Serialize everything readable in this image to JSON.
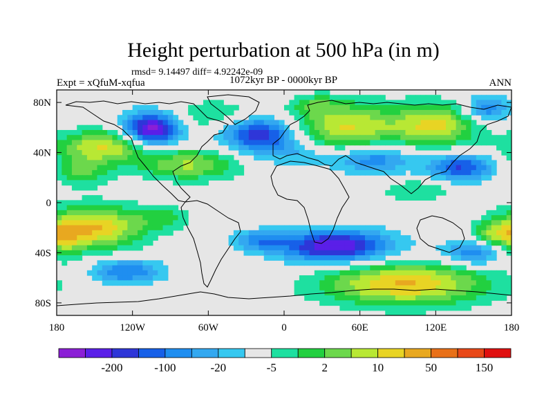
{
  "chart_data": {
    "type": "contour-map",
    "title": "Height perturbation at 500 hPa (in m)",
    "stats": "rmsd= 9.14497 diff= 4.92242e-09",
    "left_label": "Expt = xQfuM-xqfua",
    "center_label": "1072kyr BP - 0000kyr BP",
    "right_label": "ANN",
    "lon_range": [
      -180,
      180
    ],
    "lat_range": [
      -90,
      90
    ],
    "x_ticks": [
      {
        "value": -180,
        "label": "180"
      },
      {
        "value": -120,
        "label": "120W"
      },
      {
        "value": -60,
        "label": "60W"
      },
      {
        "value": 0,
        "label": "0"
      },
      {
        "value": 60,
        "label": "60E"
      },
      {
        "value": 120,
        "label": "120E"
      },
      {
        "value": 180,
        "label": "180"
      }
    ],
    "y_ticks": [
      {
        "value": 80,
        "label": "80N"
      },
      {
        "value": 40,
        "label": "40N"
      },
      {
        "value": 0,
        "label": "0"
      },
      {
        "value": -40,
        "label": "40S"
      },
      {
        "value": -80,
        "label": "80S"
      }
    ],
    "colorbar": {
      "colors": [
        "#8b1fd6",
        "#5a1fe8",
        "#2e36d8",
        "#1760e8",
        "#1f8ef0",
        "#33a8f0",
        "#36c8f0",
        "#e6e6e6",
        "#1ee0a0",
        "#22d040",
        "#6cd84c",
        "#b8e834",
        "#e8d424",
        "#e8a820",
        "#e87018",
        "#e84818",
        "#e01010"
      ],
      "labels": [
        {
          "after_index": 1,
          "label": "-200"
        },
        {
          "after_index": 3,
          "label": "-100"
        },
        {
          "after_index": 5,
          "label": "-20"
        },
        {
          "after_index": 7,
          "label": "-5"
        },
        {
          "after_index": 9,
          "label": "2"
        },
        {
          "after_index": 11,
          "label": "10"
        },
        {
          "after_index": 13,
          "label": "50"
        },
        {
          "after_index": 15,
          "label": "150"
        }
      ]
    },
    "anomalies": [
      {
        "lon": -140,
        "lat": 45,
        "lon_radius": 40,
        "lat_radius": 13,
        "peak": 5
      },
      {
        "lon": -160,
        "lat": 25,
        "lon_radius": 22,
        "lat_radius": 12,
        "peak": 3
      },
      {
        "lon": -105,
        "lat": 58,
        "lon_radius": 22,
        "lat_radius": 14,
        "peak": -8
      },
      {
        "lon": -75,
        "lat": 30,
        "lon_radius": 38,
        "lat_radius": 12,
        "peak": 4
      },
      {
        "lon": -55,
        "lat": 70,
        "lon_radius": 40,
        "lat_radius": 12,
        "peak": 2
      },
      {
        "lon": -20,
        "lat": 55,
        "lon_radius": 28,
        "lat_radius": 14,
        "peak": -6
      },
      {
        "lon": 10,
        "lat": 40,
        "lon_radius": 28,
        "lat_radius": 12,
        "peak": -2
      },
      {
        "lon": 50,
        "lat": 60,
        "lon_radius": 42,
        "lat_radius": 20,
        "peak": 5
      },
      {
        "lon": 120,
        "lat": 62,
        "lon_radius": 32,
        "lat_radius": 17,
        "peak": 5
      },
      {
        "lon": 70,
        "lat": 35,
        "lon_radius": 32,
        "lat_radius": 12,
        "peak": -4
      },
      {
        "lon": 140,
        "lat": 28,
        "lon_radius": 26,
        "lat_radius": 11,
        "peak": -5
      },
      {
        "lon": 25,
        "lat": 78,
        "lon_radius": 18,
        "lat_radius": 8,
        "peak": 2
      },
      {
        "lon": 160,
        "lat": 75,
        "lon_radius": 18,
        "lat_radius": 10,
        "peak": -4
      },
      {
        "lon": 105,
        "lat": 10,
        "lon_radius": 28,
        "lat_radius": 9,
        "peak": 2
      },
      {
        "lon": -150,
        "lat": -20,
        "lon_radius": 38,
        "lat_radius": 17,
        "peak": 6
      },
      {
        "lon": -175,
        "lat": -30,
        "lon_radius": 15,
        "lat_radius": 15,
        "peak": 3
      },
      {
        "lon": -125,
        "lat": -55,
        "lon_radius": 28,
        "lat_radius": 10,
        "peak": -4
      },
      {
        "lon": -95,
        "lat": -12,
        "lon_radius": 22,
        "lat_radius": 10,
        "peak": 2
      },
      {
        "lon": 40,
        "lat": -35,
        "lon_radius": 45,
        "lat_radius": 13,
        "peak": -7
      },
      {
        "lon": -20,
        "lat": -30,
        "lon_radius": 20,
        "lat_radius": 8,
        "peak": -3
      },
      {
        "lon": 95,
        "lat": -65,
        "lon_radius": 65,
        "lat_radius": 17,
        "peak": 6
      },
      {
        "lon": 150,
        "lat": -40,
        "lon_radius": 25,
        "lat_radius": 10,
        "peak": -4
      },
      {
        "lon": 165,
        "lat": -25,
        "lon_radius": 15,
        "lat_radius": 10,
        "peak": 3
      }
    ]
  }
}
